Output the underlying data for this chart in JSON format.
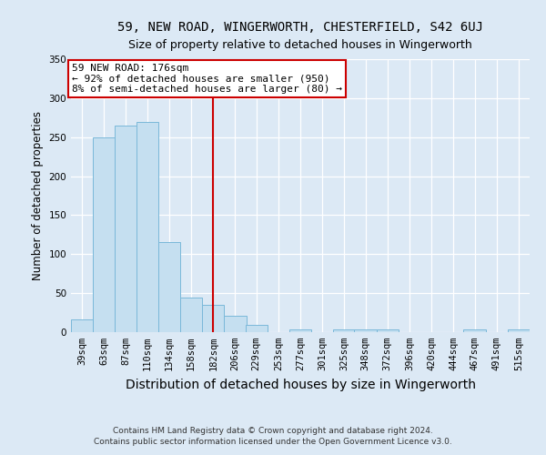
{
  "title": "59, NEW ROAD, WINGERWORTH, CHESTERFIELD, S42 6UJ",
  "subtitle": "Size of property relative to detached houses in Wingerworth",
  "xlabel": "Distribution of detached houses by size in Wingerworth",
  "ylabel": "Number of detached properties",
  "footer1": "Contains HM Land Registry data © Crown copyright and database right 2024.",
  "footer2": "Contains public sector information licensed under the Open Government Licence v3.0.",
  "bar_centers": [
    39,
    63,
    87,
    110,
    134,
    158,
    182,
    206,
    229,
    253,
    277,
    301,
    325,
    348,
    372,
    396,
    420,
    444,
    467,
    491,
    515
  ],
  "bar_heights": [
    16,
    250,
    265,
    270,
    115,
    44,
    35,
    21,
    9,
    0,
    3,
    0,
    4,
    4,
    3,
    0,
    0,
    0,
    3,
    0,
    3
  ],
  "bar_color": "#c5dff0",
  "bar_edge_color": "#7ab8d9",
  "property_line_x": 182,
  "property_line_color": "#cc0000",
  "annotation_line1": "59 NEW ROAD: 176sqm",
  "annotation_line2": "← 92% of detached houses are smaller (950)",
  "annotation_line3": "8% of semi-detached houses are larger (80) →",
  "annotation_box_color": "#ffffff",
  "annotation_box_edge_color": "#cc0000",
  "ylim": [
    0,
    350
  ],
  "yticks": [
    0,
    50,
    100,
    150,
    200,
    250,
    300,
    350
  ],
  "background_color": "#dce9f5",
  "plot_bg_color": "#dce9f5",
  "grid_color": "#ffffff",
  "title_fontsize": 10,
  "subtitle_fontsize": 9,
  "xlabel_fontsize": 10,
  "ylabel_fontsize": 8.5,
  "tick_fontsize": 7.5,
  "annotation_fontsize": 8,
  "footer_fontsize": 6.5
}
